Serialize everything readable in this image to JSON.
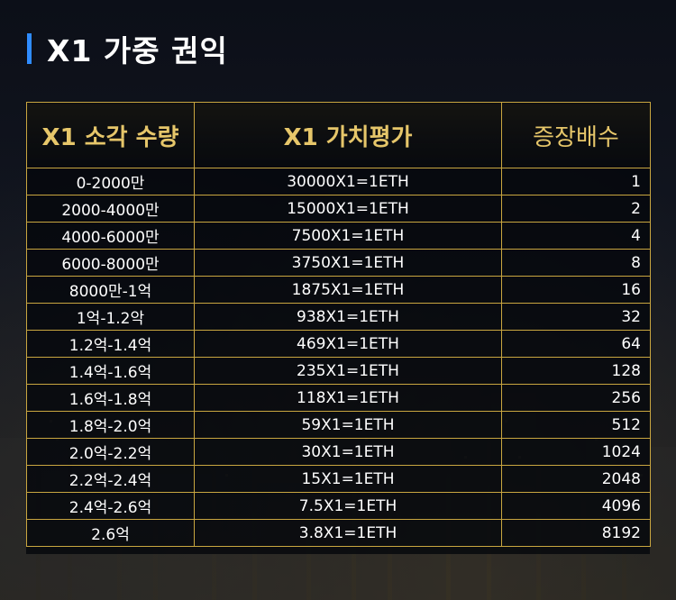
{
  "title": "X1 가중 권익",
  "colors": {
    "accent_bar": "#2f8cff",
    "border": "#c9a640",
    "header_text": "#e6c66a"
  },
  "table": {
    "headers": [
      "X1 소각 수량",
      "X1 가치평가",
      "증장배수"
    ],
    "rows": [
      [
        "0-2000만",
        "30000X1=1ETH",
        "1"
      ],
      [
        "2000-4000만",
        "15000X1=1ETH",
        "2"
      ],
      [
        "4000-6000만",
        "7500X1=1ETH",
        "4"
      ],
      [
        "6000-8000만",
        "3750X1=1ETH",
        "8"
      ],
      [
        "8000만-1억",
        "1875X1=1ETH",
        "16"
      ],
      [
        "1억-1.2악",
        "938X1=1ETH",
        "32"
      ],
      [
        "1.2억-1.4억",
        "469X1=1ETH",
        "64"
      ],
      [
        "1.4억-1.6억",
        "235X1=1ETH",
        "128"
      ],
      [
        "1.6억-1.8억",
        "118X1=1ETH",
        "256"
      ],
      [
        "1.8억-2.0억",
        "59X1=1ETH",
        "512"
      ],
      [
        "2.0억-2.2억",
        "30X1=1ETH",
        "1024"
      ],
      [
        "2.2억-2.4억",
        "15X1=1ETH",
        "2048"
      ],
      [
        "2.4억-2.6억",
        "7.5X1=1ETH",
        "4096"
      ],
      [
        "2.6억",
        "3.8X1=1ETH",
        "8192"
      ]
    ]
  }
}
